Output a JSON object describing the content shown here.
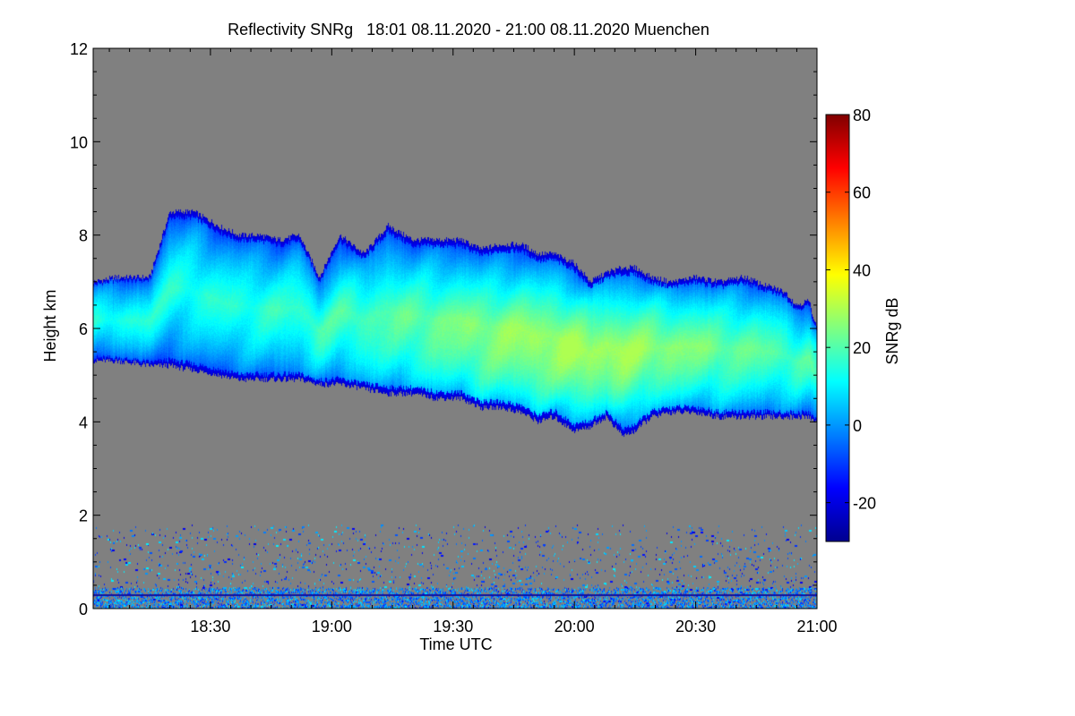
{
  "chart_data": {
    "type": "heatmap",
    "title": "Reflectivity SNRg   18:01 08.11.2020 - 21:00 08.11.2020 Muenchen",
    "xlabel": "Time UTC",
    "ylabel": "Height km",
    "xlim_minutes_utc": [
      1081,
      1260
    ],
    "ylim_km": [
      0,
      12
    ],
    "x_ticks": [
      {
        "minutes": 1110,
        "label": "18:30"
      },
      {
        "minutes": 1140,
        "label": "19:00"
      },
      {
        "minutes": 1170,
        "label": "19:30"
      },
      {
        "minutes": 1200,
        "label": "20:00"
      },
      {
        "minutes": 1230,
        "label": "20:30"
      },
      {
        "minutes": 1260,
        "label": "21:00"
      }
    ],
    "y_ticks": [
      {
        "value": 0,
        "label": "0"
      },
      {
        "value": 2,
        "label": "2"
      },
      {
        "value": 4,
        "label": "4"
      },
      {
        "value": 6,
        "label": "6"
      },
      {
        "value": 8,
        "label": "8"
      },
      {
        "value": 10,
        "label": "10"
      },
      {
        "value": 12,
        "label": "12"
      }
    ],
    "colorbar": {
      "label": "SNRg dB",
      "range": [
        -30,
        80
      ],
      "ticks": [
        {
          "value": -20,
          "label": "-20"
        },
        {
          "value": 0,
          "label": "0"
        },
        {
          "value": 20,
          "label": "20"
        },
        {
          "value": 40,
          "label": "40"
        },
        {
          "value": 60,
          "label": "60"
        },
        {
          "value": 80,
          "label": "80"
        }
      ],
      "colormap": "jet"
    },
    "no_data_color": "#808080",
    "cloud_layer": {
      "time_minutes": [
        1081,
        1087,
        1095,
        1100,
        1106,
        1112,
        1117,
        1122,
        1127,
        1132,
        1137,
        1142,
        1148,
        1154,
        1160,
        1166,
        1172,
        1177,
        1182,
        1187,
        1191,
        1195,
        1200,
        1204,
        1208,
        1212,
        1215,
        1219,
        1224,
        1230,
        1236,
        1242,
        1248,
        1252,
        1255,
        1258,
        1260
      ],
      "top_km": [
        7.0,
        7.1,
        7.1,
        8.5,
        8.5,
        8.2,
        8.0,
        8.0,
        7.9,
        8.0,
        7.1,
        8.0,
        7.6,
        8.2,
        7.9,
        7.9,
        7.9,
        7.7,
        7.8,
        7.8,
        7.6,
        7.6,
        7.4,
        7.0,
        7.2,
        7.3,
        7.3,
        7.1,
        7.0,
        7.1,
        7.0,
        7.1,
        6.9,
        6.8,
        6.5,
        6.6,
        6.0
      ],
      "base_km": [
        5.3,
        5.3,
        5.2,
        5.2,
        5.1,
        5.0,
        4.9,
        4.9,
        4.9,
        4.9,
        4.8,
        4.8,
        4.7,
        4.6,
        4.6,
        4.5,
        4.5,
        4.3,
        4.3,
        4.2,
        4.0,
        4.1,
        3.8,
        3.9,
        4.1,
        3.7,
        3.8,
        4.1,
        4.2,
        4.2,
        4.1,
        4.1,
        4.1,
        4.1,
        4.1,
        4.1,
        4.0
      ],
      "peak_snr_db": 30,
      "peak_time_minutes": 1196,
      "peak_height_km": 5.2
    },
    "ground_clutter": {
      "height_range_km": [
        0,
        1.8
      ],
      "line_height_km": 0.3,
      "snr_range_db": [
        -20,
        10
      ]
    }
  }
}
